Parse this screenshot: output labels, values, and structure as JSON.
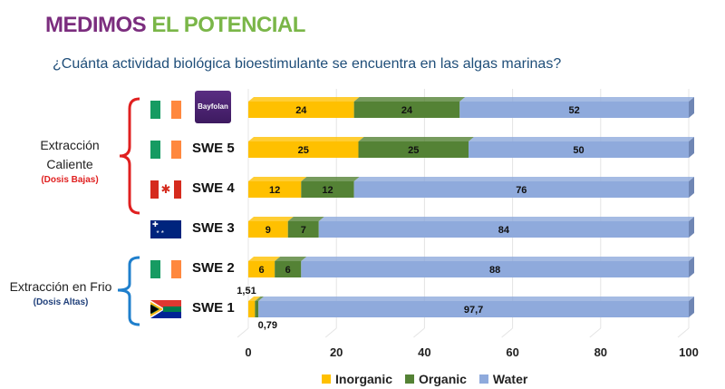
{
  "title": {
    "part1": "MEDIMOS",
    "part2": "EL POTENCIAL"
  },
  "subtitle": "¿Cuánta actividad biológica bioestimulante se encuentra en las algas marinas?",
  "groups": [
    {
      "label1": "Extracción",
      "label2": "Caliente",
      "note": "(Dosis Bajas)",
      "note_color": "#e02020",
      "brace_color": "#e02020"
    },
    {
      "label1": "Extracción en Frio",
      "label2": "",
      "note": "(Dosis Altas)",
      "note_color": "#1f3f7a",
      "brace_color": "#1f7fcc"
    }
  ],
  "logo_text": "Bayfolan",
  "chart_data": {
    "type": "bar",
    "orientation": "horizontal",
    "stacked": true,
    "categories": [
      "Bayfolan",
      "SWE 5",
      "SWE 4",
      "SWE 3",
      "SWE 2",
      "SWE 1"
    ],
    "flags": [
      "ireland",
      "ireland",
      "canada",
      "australia",
      "ireland",
      "south-africa"
    ],
    "series": [
      {
        "name": "Inorganic",
        "color": "#ffc000",
        "values": [
          24,
          25,
          12,
          9,
          6,
          1.51
        ],
        "labels": [
          "24",
          "25",
          "12",
          "9",
          "6",
          "1,51"
        ]
      },
      {
        "name": "Organic",
        "color": "#548235",
        "values": [
          24,
          25,
          12,
          7,
          6,
          0.79
        ],
        "labels": [
          "24",
          "25",
          "12",
          "7",
          "6",
          "0,79"
        ]
      },
      {
        "name": "Water",
        "color": "#8faadc",
        "values": [
          52,
          50,
          76,
          84,
          88,
          97.7
        ],
        "labels": [
          "52",
          "50",
          "76",
          "84",
          "88",
          "97,7"
        ]
      }
    ],
    "xlim": [
      0,
      100
    ],
    "xticks": [
      "0",
      "20",
      "40",
      "60",
      "80",
      "100"
    ],
    "legend_position": "bottom"
  }
}
